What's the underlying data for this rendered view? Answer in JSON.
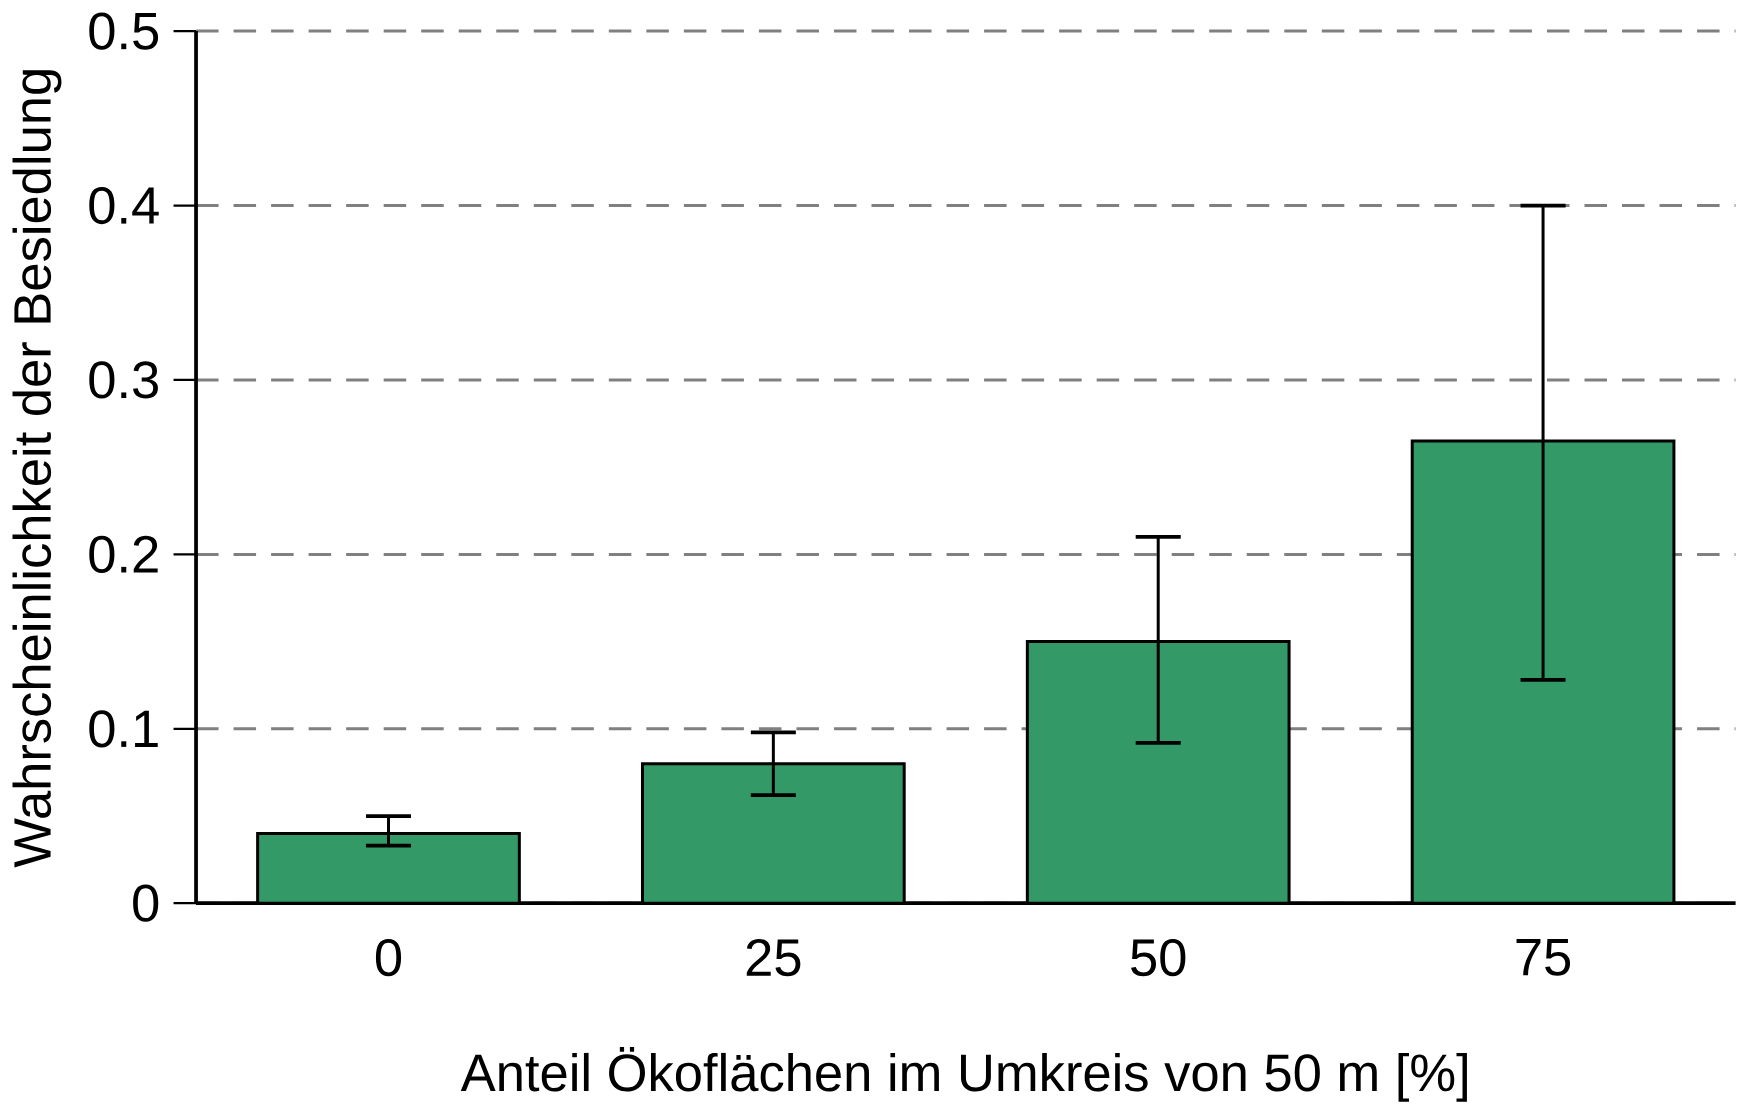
{
  "chart_data": {
    "type": "bar",
    "xlabel": "Anteil Ökoflächen im Umkreis von 50 m [%]",
    "ylabel": "Wahrscheinlichkeit der Besiedlung",
    "categories": [
      "0",
      "25",
      "50",
      "75"
    ],
    "values": [
      0.04,
      0.08,
      0.15,
      0.265
    ],
    "errors": [
      [
        0.033,
        0.05
      ],
      [
        0.062,
        0.098
      ],
      [
        0.092,
        0.21
      ],
      [
        0.128,
        0.4
      ]
    ],
    "color": "#339966",
    "ylim": [
      0,
      0.5
    ],
    "yticks": [
      0,
      0.1,
      0.2,
      0.3,
      0.4,
      0.5
    ],
    "grid": "y"
  }
}
